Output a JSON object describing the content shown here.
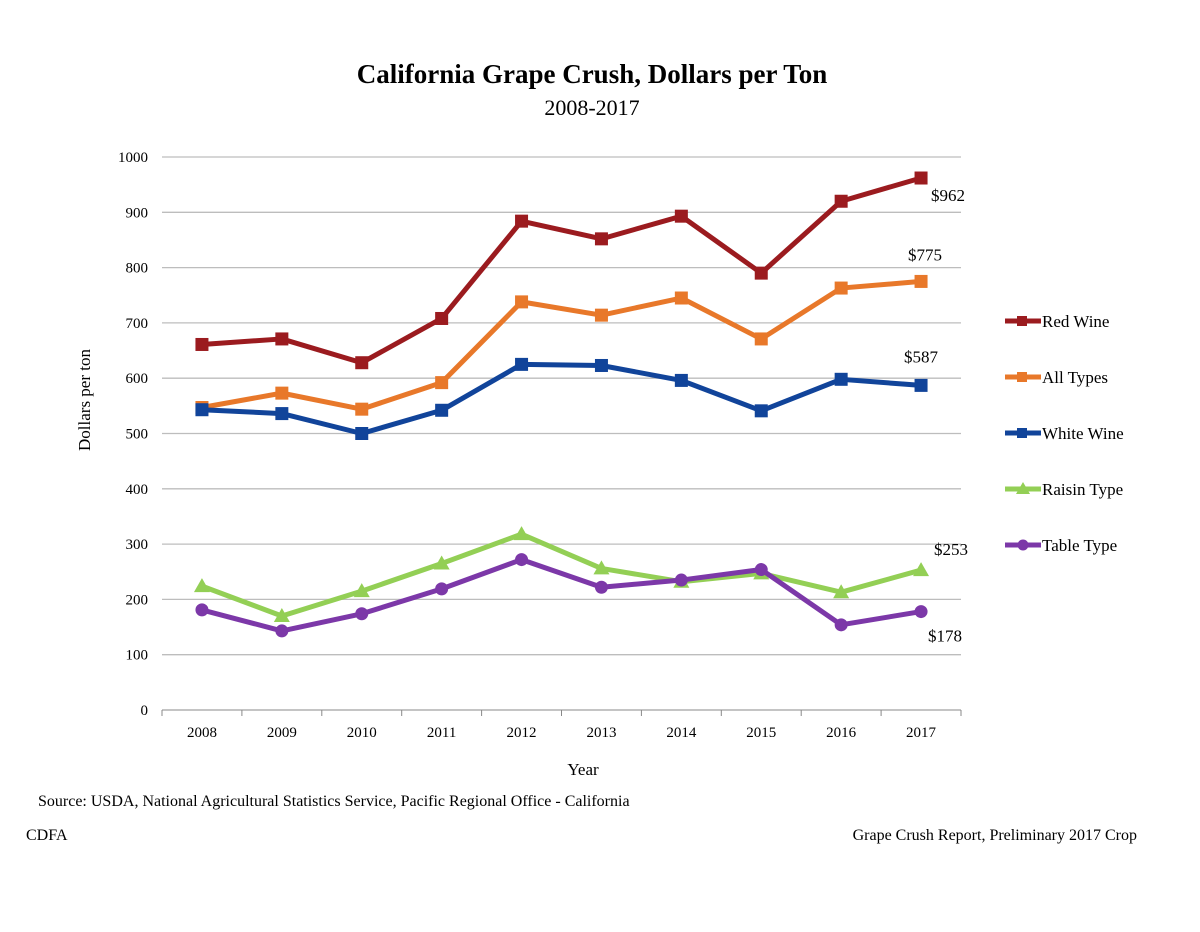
{
  "chart_data": {
    "type": "line",
    "title": "California Grape Crush, Dollars per Ton",
    "subtitle": "2008-2017",
    "xlabel": "Year",
    "ylabel": "Dollars per ton",
    "x": [
      "2008",
      "2009",
      "2010",
      "2011",
      "2012",
      "2013",
      "2014",
      "2015",
      "2016",
      "2017"
    ],
    "ylim": [
      0,
      1000
    ],
    "yticks": [
      0,
      100,
      200,
      300,
      400,
      500,
      600,
      700,
      800,
      900,
      1000
    ],
    "grid": true,
    "legend_position": "right",
    "series": [
      {
        "name": "Red Wine",
        "color": "#9b1b1f",
        "marker": "square",
        "values": [
          661,
          671,
          628,
          708,
          884,
          852,
          893,
          790,
          920,
          962
        ],
        "end_label": "$962"
      },
      {
        "name": "All Types",
        "color": "#e8782a",
        "marker": "square",
        "values": [
          547,
          573,
          544,
          592,
          738,
          714,
          745,
          671,
          763,
          775
        ],
        "end_label": "$775"
      },
      {
        "name": "White Wine",
        "color": "#11449a",
        "marker": "square",
        "values": [
          543,
          536,
          500,
          542,
          625,
          623,
          596,
          541,
          598,
          587
        ],
        "end_label": "$587"
      },
      {
        "name": "Raisin Type",
        "color": "#93cf55",
        "marker": "triangle",
        "values": [
          224,
          170,
          215,
          265,
          318,
          256,
          232,
          247,
          213,
          253
        ],
        "end_label": "$253"
      },
      {
        "name": "Table Type",
        "color": "#7c38a8",
        "marker": "circle",
        "values": [
          181,
          143,
          174,
          219,
          272,
          222,
          235,
          254,
          154,
          178
        ],
        "end_label": "$178"
      }
    ]
  },
  "footer": {
    "source": "Source: USDA, National Agricultural Statistics Service, Pacific Regional Office - California",
    "left": "CDFA",
    "right": "Grape Crush Report, Preliminary 2017 Crop"
  }
}
